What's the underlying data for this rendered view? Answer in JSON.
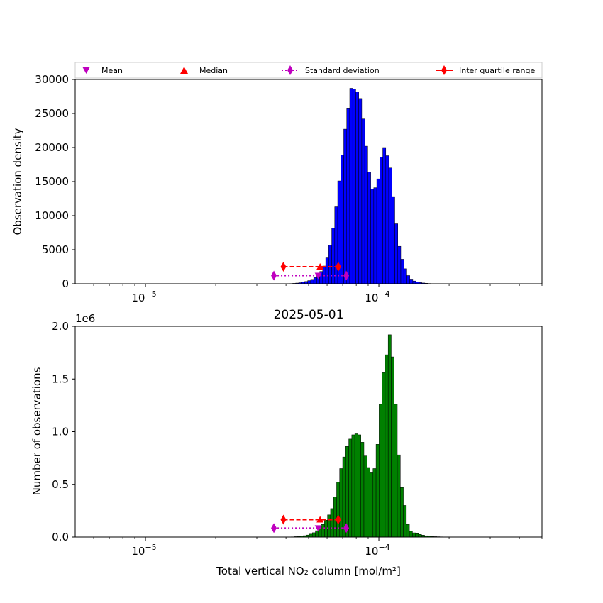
{
  "chart_data": [
    {
      "type": "bar",
      "x_scale": "log",
      "xlim": [
        5e-06,
        0.0005
      ],
      "ylim": [
        0,
        30000
      ],
      "ylabel": "Observation density",
      "xlabel": "",
      "title": "",
      "bar_color": "#0000ff",
      "yticks": [
        0,
        5000,
        10000,
        15000,
        20000,
        25000,
        30000
      ],
      "ytick_labels": [
        "0",
        "5000",
        "10000",
        "15000",
        "20000",
        "25000",
        "30000"
      ],
      "xtick_labels": [
        "10",
        "10"
      ],
      "xtick_exponents": [
        "−5",
        "−4"
      ],
      "xticks": [
        1e-05,
        0.0001
      ],
      "bin_start": 1e-05,
      "bin_end": 0.0001995,
      "values": [
        0,
        0,
        0,
        0,
        0,
        0,
        0,
        0,
        0,
        0,
        0,
        0,
        0,
        0,
        0,
        0,
        0,
        0,
        0,
        0,
        0,
        0,
        0,
        0,
        0,
        0,
        0,
        0,
        0,
        0,
        0,
        0,
        0,
        0,
        0,
        0,
        0,
        0,
        0,
        0,
        0,
        0,
        0,
        0,
        0,
        0,
        0,
        0,
        30,
        60,
        100,
        150,
        230,
        330,
        460,
        640,
        900,
        1250,
        1800,
        2600,
        3900,
        5700,
        8200,
        11300,
        15100,
        18900,
        22700,
        25800,
        28700,
        28600,
        28200,
        27200,
        24200,
        20200,
        16400,
        13900,
        14100,
        15400,
        18600,
        20000,
        18800,
        17000,
        12800,
        8800,
        5500,
        3600,
        2200,
        1200,
        680,
        400,
        260,
        170,
        110,
        70,
        40,
        25,
        15,
        8,
        4,
        2,
        1,
        0
      ]
    },
    {
      "type": "bar",
      "x_scale": "log",
      "xlim": [
        5e-06,
        0.0005
      ],
      "ylim": [
        0,
        2.0
      ],
      "ylabel": "Number of observations",
      "xlabel": "Total vertical NO₂ column [mol/m²]",
      "title": "2025-05-01",
      "offset_label": "1e6",
      "bar_color": "#008000",
      "yticks": [
        0,
        0.5,
        1.0,
        1.5,
        2.0
      ],
      "ytick_labels": [
        "0.0",
        "0.5",
        "1.0",
        "1.5",
        "2.0"
      ],
      "xtick_labels": [
        "10",
        "10"
      ],
      "xtick_exponents": [
        "−5",
        "−4"
      ],
      "xticks": [
        1e-05,
        0.0001
      ],
      "bin_start": 1e-05,
      "bin_end": 0.0001995,
      "values": [
        0,
        0,
        0,
        0,
        0,
        0,
        0,
        0,
        0,
        0,
        0,
        0,
        0,
        0,
        0,
        0,
        0,
        0,
        0,
        0,
        0,
        0,
        0,
        0,
        0,
        0,
        0,
        0,
        0,
        0,
        0,
        0,
        0,
        0,
        0,
        0,
        0,
        0,
        0,
        0,
        0,
        0,
        0,
        0,
        0,
        0,
        0,
        0,
        0.002,
        0.004,
        0.006,
        0.009,
        0.013,
        0.019,
        0.028,
        0.041,
        0.06,
        0.085,
        0.12,
        0.16,
        0.21,
        0.27,
        0.38,
        0.52,
        0.65,
        0.76,
        0.86,
        0.93,
        0.97,
        0.98,
        0.97,
        0.9,
        0.77,
        0.66,
        0.61,
        0.65,
        0.88,
        1.26,
        1.56,
        1.73,
        1.92,
        1.71,
        1.26,
        0.78,
        0.47,
        0.3,
        0.12,
        0.055,
        0.04,
        0.032,
        0.025,
        0.018,
        0.012,
        0.008,
        0.006,
        0.004,
        0.003,
        0.002,
        0.001,
        0,
        0
      ]
    }
  ],
  "legend": {
    "placement": "top",
    "items": [
      {
        "label": "Mean",
        "marker": "triangle-down",
        "color": "#bf00bf"
      },
      {
        "label": "Median",
        "marker": "triangle-up",
        "color": "#ff0000"
      },
      {
        "label": "Standard deviation",
        "marker": "diamond",
        "color": "#bf00bf",
        "line": "dotted"
      },
      {
        "label": "Inter quartile range",
        "marker": "diamond",
        "color": "#ff0000",
        "line": "solid"
      }
    ]
  },
  "stats": {
    "mean": 5.5e-05,
    "median": 5.6e-05,
    "std_range": [
      3.55e-05,
      7.25e-05
    ],
    "iqr_range": [
      3.9e-05,
      6.7e-05
    ],
    "top_mean_y": 1200,
    "top_iqr_y": 2500,
    "bottom_mean_y": 0.085,
    "bottom_iqr_y": 0.165
  }
}
